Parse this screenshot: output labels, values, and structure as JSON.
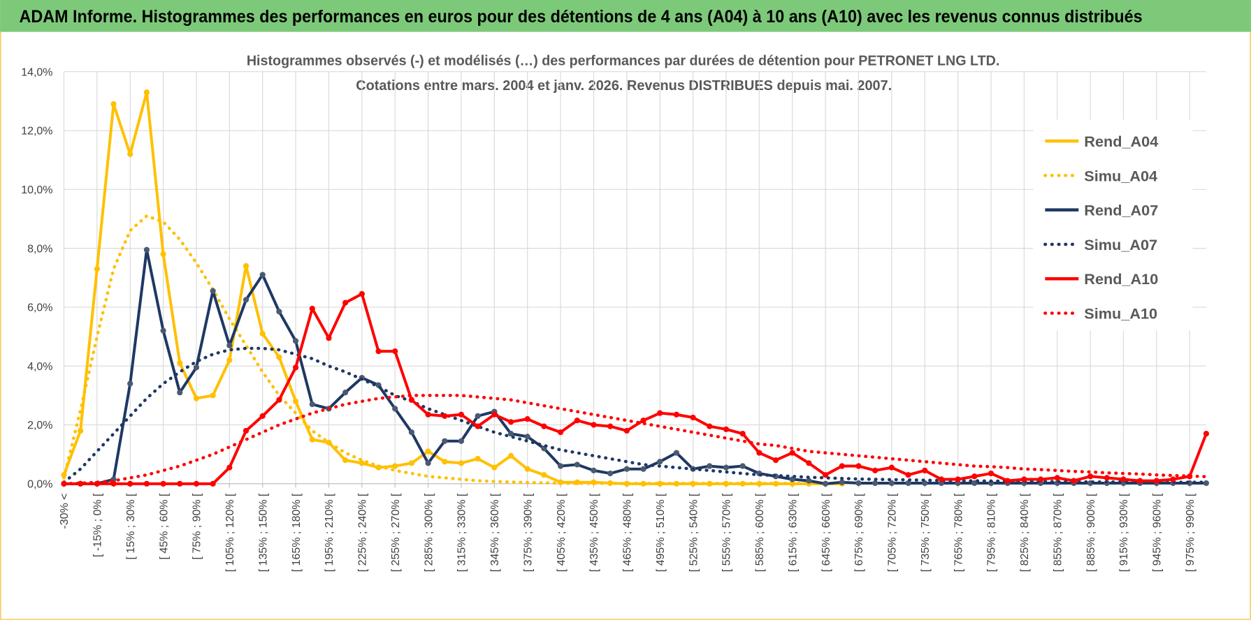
{
  "header": {
    "title": "ADAM Informe. Histogrammes des performances en euros pour des détentions de 4 ans (A04) à 10 ans (A10) avec les revenus connus distribués"
  },
  "chart_data": {
    "type": "line",
    "title": "Histogrammes observés (-) et modélisés (…) des performances par durées de détention pour PETRONET LNG LTD.",
    "subtitle": "Cotations entre mars. 2004 et janv. 2026. Revenus DISTRIBUES depuis mai. 2007.",
    "categories": [
      "-30% <",
      null,
      "[ -15% ; 0% [",
      null,
      "[ 15% ; 30% [",
      null,
      "[ 45% ; 60% [",
      null,
      "[ 75% ; 90% [",
      null,
      "[ 105% ; 120% [",
      null,
      "[ 135% ; 150% [",
      null,
      "[ 165% ; 180% [",
      null,
      "[ 195% ; 210% [",
      null,
      "[ 225% ; 240% [",
      null,
      "[ 255% ; 270% [",
      null,
      "[ 285% ; 300% [",
      null,
      "[ 315% ; 330% [",
      null,
      "[ 345% ; 360% [",
      null,
      "[ 375% ; 390% [",
      null,
      "[ 405% ; 420% [",
      null,
      "[ 435% ; 450% [",
      null,
      "[ 465% ; 480% [",
      null,
      "[ 495% ; 510% [",
      null,
      "[ 525% ; 540% [",
      null,
      "[ 555% ; 570% [",
      null,
      "[ 585% ; 600% [",
      null,
      "[ 615% ; 630% [",
      null,
      "[ 645% ; 660% [",
      null,
      "[ 675% ; 690% [",
      null,
      "[ 705% ; 720% [",
      null,
      "[ 735% ; 750% [",
      null,
      "[ 765% ; 780% [",
      null,
      "[ 795% ; 810% [",
      null,
      "[ 825% ; 840% [",
      null,
      "[ 855% ; 870% [",
      null,
      "[ 885% ; 900% [",
      null,
      "[ 915% ; 930% [",
      null,
      "[ 945% ; 960% [",
      null,
      "[ 975% ; 990% [",
      null
    ],
    "series": [
      {
        "name": "Rend_A04",
        "color": "#ffc000",
        "line_style": "solid",
        "markers": true,
        "values": [
          0.3,
          1.8,
          7.3,
          12.9,
          11.2,
          13.3,
          7.8,
          4.1,
          2.9,
          3.0,
          4.2,
          7.4,
          5.1,
          4.3,
          2.8,
          1.5,
          1.4,
          0.8,
          0.7,
          0.55,
          0.6,
          0.7,
          1.1,
          0.75,
          0.7,
          0.85,
          0.55,
          0.95,
          0.5,
          0.3,
          0.05,
          0.05,
          0.05,
          0.02,
          0,
          0,
          0,
          0,
          0,
          0,
          0,
          0,
          0,
          0,
          0,
          0,
          0,
          0,
          null,
          null,
          null,
          null,
          null,
          null,
          null,
          null,
          null,
          null,
          null,
          null,
          null,
          null,
          null,
          null,
          null,
          null,
          null,
          null,
          null,
          null
        ]
      },
      {
        "name": "Simu_A04",
        "color": "#ffc000",
        "line_style": "dotted",
        "markers": false,
        "values": [
          0.2,
          2.5,
          5.0,
          7.3,
          8.6,
          9.1,
          8.9,
          8.3,
          7.5,
          6.6,
          5.6,
          4.7,
          3.8,
          3.0,
          2.4,
          1.8,
          1.4,
          1.05,
          0.8,
          0.6,
          0.45,
          0.35,
          0.25,
          0.2,
          0.15,
          0.1,
          0.08,
          0.06,
          0.04,
          0.03,
          0.02,
          0.01,
          0.01,
          0.01,
          0.01,
          0.01,
          0.01,
          0.01,
          0.01,
          0.01,
          0.01,
          0.01,
          0.01,
          0.01,
          0.01,
          0.01,
          0.01,
          0.01,
          null,
          null,
          null,
          null,
          null,
          null,
          null,
          null,
          null,
          null,
          null,
          null,
          null,
          null,
          null,
          null,
          null,
          null,
          null,
          null,
          null,
          null
        ]
      },
      {
        "name": "Rend_A07",
        "color": "#1f3864",
        "marker_color": "#4a5a70",
        "line_style": "solid",
        "markers": true,
        "values": [
          0,
          0,
          0,
          0.15,
          3.4,
          7.95,
          5.2,
          3.1,
          3.95,
          6.55,
          4.7,
          6.25,
          7.1,
          5.85,
          4.85,
          2.7,
          2.55,
          3.1,
          3.6,
          3.35,
          2.55,
          1.75,
          0.7,
          1.45,
          1.45,
          2.3,
          2.45,
          1.7,
          1.6,
          1.2,
          0.6,
          0.65,
          0.45,
          0.35,
          0.5,
          0.5,
          0.75,
          1.05,
          0.5,
          0.6,
          0.55,
          0.6,
          0.35,
          0.25,
          0.15,
          0.1,
          0,
          0.05,
          0.02,
          0.02,
          0.02,
          0.02,
          0.02,
          0.02,
          0.02,
          0.02,
          0.02,
          0.02,
          0.02,
          0.02,
          0.02,
          0.02,
          0.02,
          0.02,
          0.02,
          0.02,
          0.02,
          0.02,
          0.02,
          0.02
        ]
      },
      {
        "name": "Simu_A07",
        "color": "#1f3864",
        "line_style": "dotted",
        "markers": false,
        "values": [
          0.05,
          0.5,
          1.1,
          1.7,
          2.3,
          2.9,
          3.4,
          3.8,
          4.15,
          4.4,
          4.55,
          4.6,
          4.6,
          4.55,
          4.4,
          4.25,
          4.0,
          3.8,
          3.55,
          3.3,
          3.0,
          2.8,
          2.55,
          2.35,
          2.15,
          1.95,
          1.75,
          1.6,
          1.45,
          1.3,
          1.15,
          1.05,
          0.95,
          0.85,
          0.75,
          0.65,
          0.6,
          0.55,
          0.5,
          0.45,
          0.4,
          0.35,
          0.3,
          0.28,
          0.25,
          0.22,
          0.2,
          0.18,
          0.16,
          0.15,
          0.14,
          0.13,
          0.12,
          0.11,
          0.1,
          0.1,
          0.09,
          0.09,
          0.08,
          0.08,
          0.07,
          0.07,
          0.06,
          0.06,
          0.06,
          0.05,
          0.05,
          0.05,
          0.05,
          0.05
        ]
      },
      {
        "name": "Rend_A10",
        "color": "#ff0000",
        "line_style": "solid",
        "markers": true,
        "values": [
          0,
          0,
          0,
          0,
          0,
          0,
          0,
          0,
          0,
          0,
          0.55,
          1.8,
          2.3,
          2.85,
          3.95,
          5.95,
          4.95,
          6.15,
          6.45,
          4.5,
          4.5,
          2.85,
          2.35,
          2.3,
          2.35,
          1.95,
          2.35,
          2.1,
          2.2,
          1.95,
          1.75,
          2.15,
          2.0,
          1.95,
          1.8,
          2.15,
          2.4,
          2.35,
          2.25,
          1.95,
          1.85,
          1.7,
          1.05,
          0.8,
          1.05,
          0.7,
          0.3,
          0.6,
          0.6,
          0.45,
          0.55,
          0.3,
          0.45,
          0.15,
          0.15,
          0.25,
          0.35,
          0.1,
          0.15,
          0.15,
          0.2,
          0.1,
          0.25,
          0.2,
          0.15,
          0.1,
          0.1,
          0.15,
          0.25,
          1.7
        ]
      },
      {
        "name": "Simu_A10",
        "color": "#ff0000",
        "line_style": "dotted",
        "markers": false,
        "values": [
          0,
          0.02,
          0.05,
          0.1,
          0.2,
          0.3,
          0.45,
          0.6,
          0.8,
          1.0,
          1.25,
          1.5,
          1.75,
          2.0,
          2.2,
          2.4,
          2.55,
          2.7,
          2.8,
          2.9,
          2.95,
          3.0,
          3.0,
          3.0,
          3.0,
          2.95,
          2.9,
          2.85,
          2.75,
          2.65,
          2.55,
          2.45,
          2.35,
          2.25,
          2.15,
          2.05,
          1.95,
          1.85,
          1.75,
          1.65,
          1.55,
          1.45,
          1.35,
          1.3,
          1.2,
          1.1,
          1.05,
          1.0,
          0.95,
          0.9,
          0.85,
          0.8,
          0.75,
          0.7,
          0.65,
          0.6,
          0.58,
          0.55,
          0.5,
          0.48,
          0.45,
          0.42,
          0.4,
          0.37,
          0.35,
          0.33,
          0.3,
          0.28,
          0.26,
          0.24
        ]
      }
    ],
    "ylim": [
      0,
      14
    ],
    "yticks": [
      {
        "value": 0,
        "label": "0,0%"
      },
      {
        "value": 2,
        "label": "2,0%"
      },
      {
        "value": 4,
        "label": "4,0%"
      },
      {
        "value": 6,
        "label": "6,0%"
      },
      {
        "value": 8,
        "label": "8,0%"
      },
      {
        "value": 10,
        "label": "10,0%"
      },
      {
        "value": 12,
        "label": "12,0%"
      },
      {
        "value": 14,
        "label": "14,0%"
      }
    ],
    "grid": true,
    "legend": "right"
  }
}
